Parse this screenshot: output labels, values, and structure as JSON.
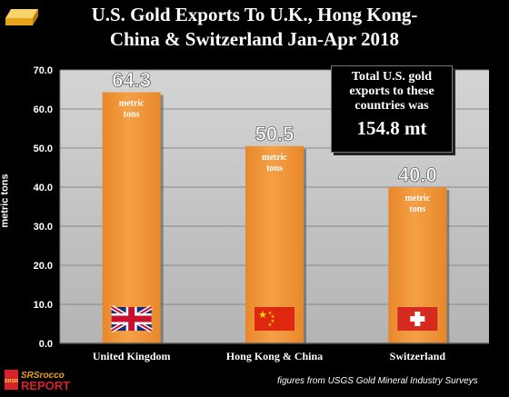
{
  "title_line1": "U.S. Gold Exports To U.K., Hong Kong-",
  "title_line2": "China & Switzerland Jan-Apr 2018",
  "callout": {
    "text": "Total U.S. gold exports to these countries was",
    "value": "154.8 mt"
  },
  "footnote": "figures from USGS Gold Mineral Industry Surveys",
  "logo": {
    "line1": "SRSrocco",
    "line2": "REPORT",
    "badge": "SRSR"
  },
  "colors": {
    "bar": "#f5a047",
    "bar_dark": "#e8872a",
    "plot_background": "#c6c6c6",
    "page_background": "#000000",
    "gold_bar": "#e8a31d"
  },
  "chart_data": {
    "type": "bar",
    "title": "U.S. Gold Exports To U.K., Hong Kong-China & Switzerland Jan-Apr 2018",
    "ylabel": "metric tons",
    "xlabel": "",
    "ylim": [
      0,
      70
    ],
    "yticks": [
      "0.0",
      "10.0",
      "20.0",
      "30.0",
      "40.0",
      "50.0",
      "60.0",
      "70.0"
    ],
    "grid": true,
    "categories": [
      "United Kingdom",
      "Hong Kong & China",
      "Switzerland"
    ],
    "values": [
      64.3,
      50.5,
      40.0
    ],
    "value_labels": [
      "64.3",
      "50.5",
      "40.0"
    ],
    "unit_label": "metric tons",
    "flag_icons": [
      "uk-flag-icon",
      "china-flag-icon",
      "swiss-flag-icon"
    ]
  }
}
